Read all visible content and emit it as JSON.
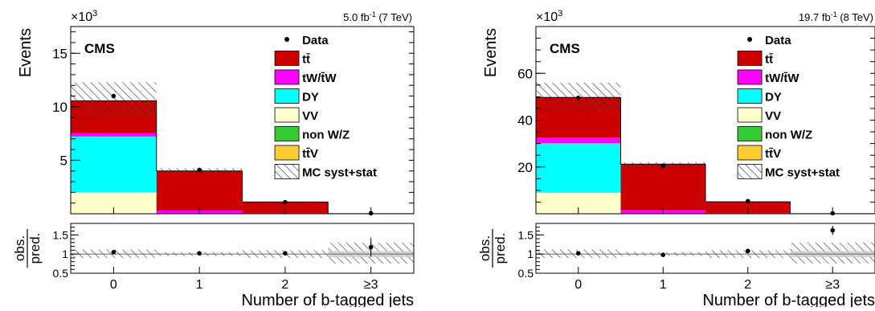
{
  "chart_data": [
    {
      "type": "bar",
      "stacked": true,
      "experiment": "CMS",
      "lumi": "5.0 fb",
      "lumi_exp": "-1",
      "energy": "(7 TeV)",
      "xlabel": "Number of b-tagged jets",
      "ylabel": "Events",
      "multiplier": "×10",
      "multiplier_exp": "3",
      "ylim": [
        0,
        17500
      ],
      "yticks": [
        5000,
        10000,
        15000
      ],
      "ytick_labels": [
        "5",
        "10",
        "15"
      ],
      "categories": [
        "0",
        "1",
        "2",
        "≥3"
      ],
      "series": [
        {
          "name": "VV",
          "color": "#ffffcc",
          "values": [
            2000,
            0,
            0,
            0
          ]
        },
        {
          "name": "DY",
          "color": "#00ffff",
          "values": [
            5200,
            0,
            0,
            0
          ]
        },
        {
          "name": "non W/Z",
          "color": "#33cc33",
          "values": [
            50,
            0,
            0,
            0
          ]
        },
        {
          "name": "tW/t̄W",
          "color": "#ff00ff",
          "values": [
            300,
            300,
            50,
            0
          ]
        },
        {
          "name": "tt̄V",
          "color": "#ffcc33",
          "values": [
            0,
            0,
            0,
            0
          ]
        },
        {
          "name": "tt̄",
          "color": "#cc0000",
          "values": [
            3000,
            3700,
            1050,
            10
          ]
        }
      ],
      "data_points": [
        11000,
        4100,
        1080,
        50
      ],
      "syst_band": [
        [
          9000,
          12300
        ],
        [
          3850,
          4250
        ],
        [
          1000,
          1150
        ],
        [
          0,
          30
        ]
      ],
      "legend": [
        "Data",
        "tt̄",
        "tW/t̄W",
        "DY",
        "VV",
        "non W/Z",
        "tt̄V",
        "MC syst+stat"
      ],
      "ratio": {
        "ylabel_num": "obs.",
        "ylabel_den": "pred.",
        "ylim": [
          0.5,
          1.8
        ],
        "yticks": [
          0.5,
          1,
          1.5
        ],
        "ytick_labels": [
          "0.5",
          "1",
          "1.5"
        ],
        "values": [
          1.05,
          1.02,
          1.02,
          1.18
        ],
        "errors": [
          0.01,
          0.01,
          0.02,
          0.25
        ],
        "band": [
          [
            0.9,
            1.12
          ],
          [
            0.95,
            1.05
          ],
          [
            0.9,
            1.1
          ],
          [
            0.75,
            1.3
          ]
        ]
      }
    },
    {
      "type": "bar",
      "stacked": true,
      "experiment": "CMS",
      "lumi": "19.7 fb",
      "lumi_exp": "-1",
      "energy": "(8 TeV)",
      "xlabel": "Number of b-tagged jets",
      "ylabel": "Events",
      "multiplier": "×10",
      "multiplier_exp": "3",
      "ylim": [
        0,
        80000
      ],
      "yticks": [
        20000,
        40000,
        60000
      ],
      "ytick_labels": [
        "20",
        "40",
        "60"
      ],
      "categories": [
        "0",
        "1",
        "2",
        "≥3"
      ],
      "series": [
        {
          "name": "VV",
          "color": "#ffffcc",
          "values": [
            9000,
            0,
            0,
            0
          ]
        },
        {
          "name": "DY",
          "color": "#00ffff",
          "values": [
            21000,
            0,
            0,
            0
          ]
        },
        {
          "name": "non W/Z",
          "color": "#33cc33",
          "values": [
            100,
            0,
            0,
            0
          ]
        },
        {
          "name": "tW/t̄W",
          "color": "#ff00ff",
          "values": [
            2400,
            1500,
            300,
            0
          ]
        },
        {
          "name": "tt̄V",
          "color": "#ffcc33",
          "values": [
            0,
            0,
            0,
            0
          ]
        },
        {
          "name": "tt̄",
          "color": "#cc0000",
          "values": [
            17200,
            19700,
            4800,
            50
          ]
        }
      ],
      "data_points": [
        49500,
        20500,
        5400,
        200
      ],
      "syst_band": [
        [
          44000,
          56000
        ],
        [
          20000,
          22000
        ],
        [
          4900,
          5400
        ],
        [
          0,
          100
        ]
      ],
      "legend": [
        "Data",
        "tt̄",
        "tW/t̄W",
        "DY",
        "VV",
        "non W/Z",
        "tt̄V",
        "MC syst+stat"
      ],
      "ratio": {
        "ylabel_num": "obs.",
        "ylabel_den": "pred.",
        "ylim": [
          0.5,
          1.8
        ],
        "yticks": [
          0.5,
          1,
          1.5
        ],
        "ytick_labels": [
          "0.5",
          "1",
          "1.5"
        ],
        "values": [
          1.02,
          0.98,
          1.08,
          1.62
        ],
        "errors": [
          0.01,
          0.01,
          0.02,
          0.12
        ],
        "band": [
          [
            0.9,
            1.12
          ],
          [
            0.95,
            1.05
          ],
          [
            0.9,
            1.1
          ],
          [
            0.75,
            1.3
          ]
        ]
      }
    }
  ]
}
